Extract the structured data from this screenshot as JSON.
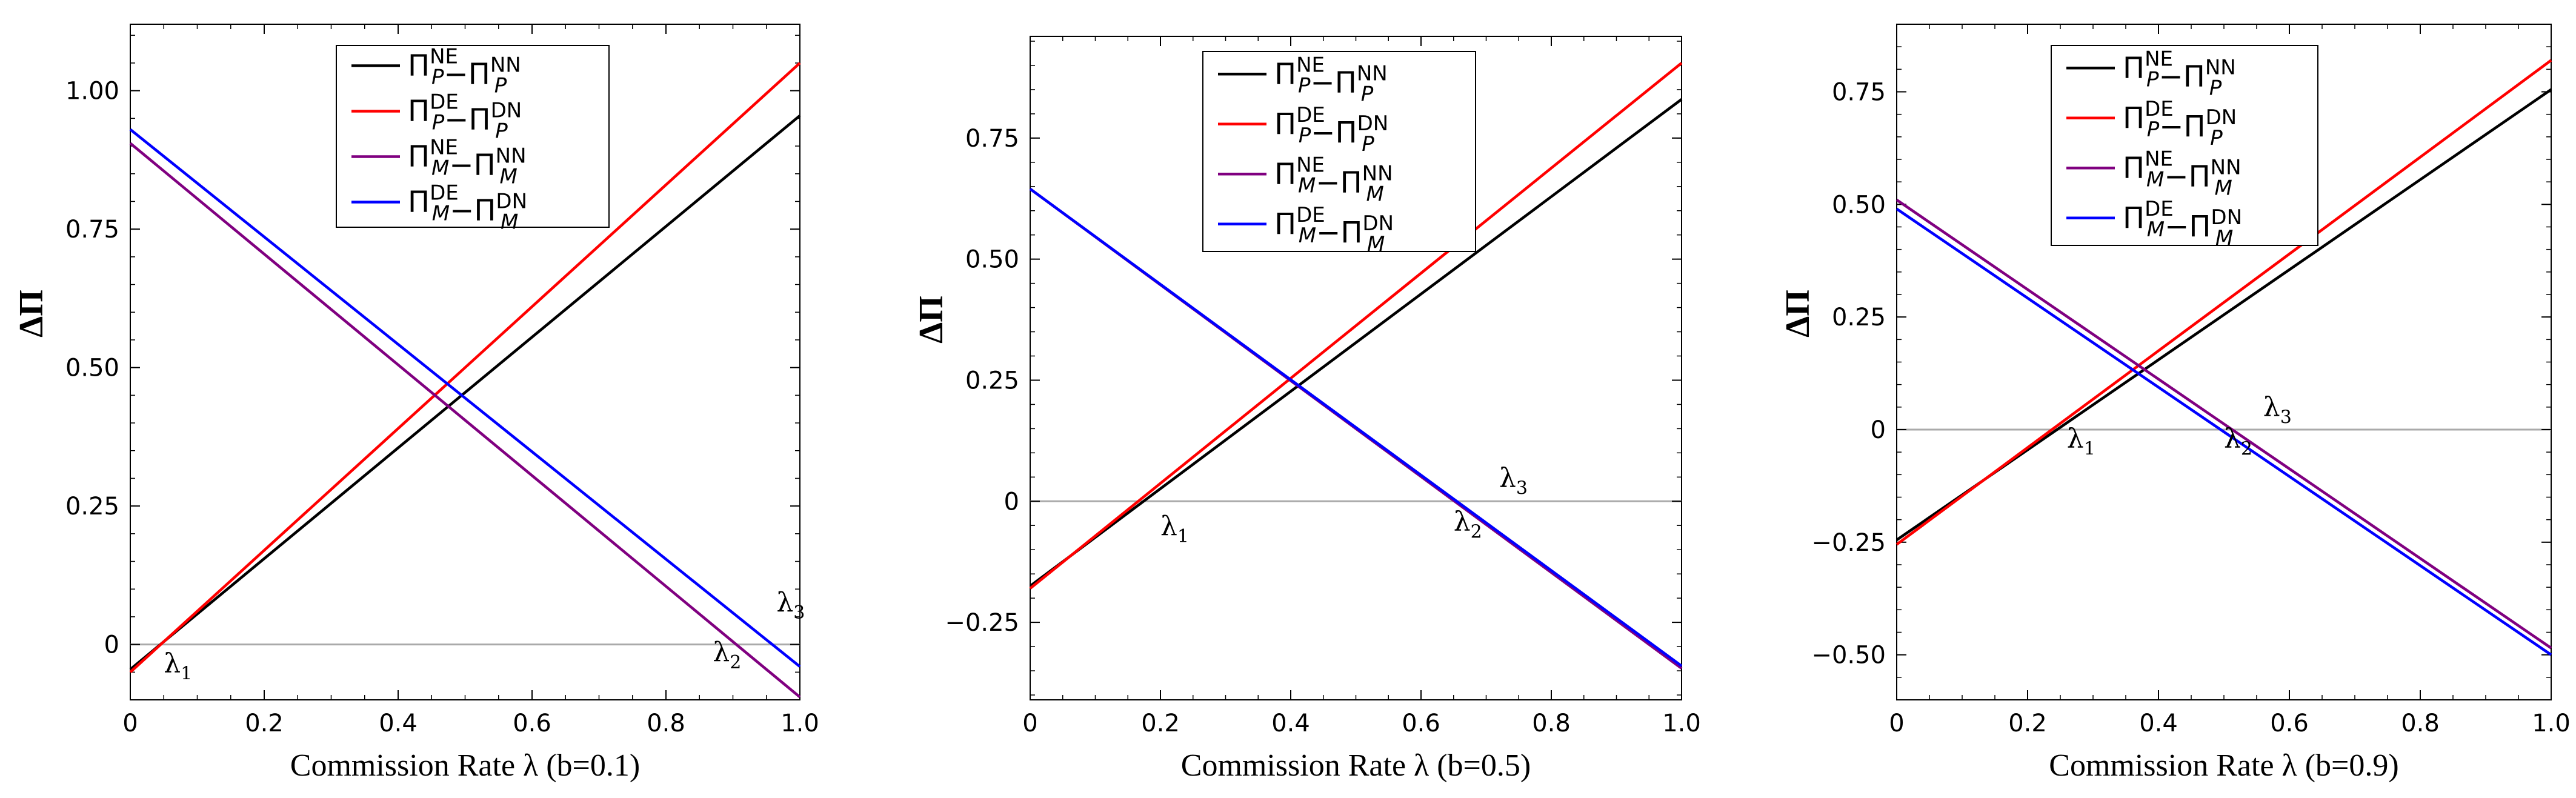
{
  "chart_data": [
    {
      "type": "line",
      "title": "",
      "xlabel": "Commission Rate λ (b=0.1)",
      "ylabel": "ΔΠ",
      "xlim": [
        0,
        1
      ],
      "ylim": [
        -0.1,
        1.12
      ],
      "x_ticks": [
        "0",
        "0.2",
        "0.4",
        "0.6",
        "0.8",
        "1.0"
      ],
      "y_ticks": [
        "0",
        "0.25",
        "0.50",
        "0.75",
        "1.00"
      ],
      "y_tick_values": [
        0,
        0.25,
        0.5,
        0.75,
        1.0
      ],
      "legend_position": "top-center",
      "series": [
        {
          "name": "ΠP^NE−ΠP^NN",
          "color": "#000000",
          "x": [
            0,
            1
          ],
          "y": [
            -0.045,
            0.955
          ]
        },
        {
          "name": "ΠP^DE−ΠP^DN",
          "color": "#ff0000",
          "x": [
            0,
            1
          ],
          "y": [
            -0.05,
            1.05
          ]
        },
        {
          "name": "ΠM^NE−ΠM^NN",
          "color": "#800080",
          "x": [
            0,
            1
          ],
          "y": [
            0.905,
            -0.095
          ]
        },
        {
          "name": "ΠM^DE−ΠM^DN",
          "color": "#0000ff",
          "x": [
            0,
            1
          ],
          "y": [
            0.93,
            -0.04
          ]
        }
      ],
      "annotations": [
        {
          "text": "λ",
          "sub": "1",
          "x": 0.05,
          "y": -0.05
        },
        {
          "text": "λ",
          "sub": "2",
          "x": 0.87,
          "y": -0.03
        },
        {
          "text": "λ",
          "sub": "3",
          "x": 0.965,
          "y": 0.06
        }
      ]
    },
    {
      "type": "line",
      "title": "",
      "xlabel": "Commission Rate λ (b=0.5)",
      "ylabel": "ΔΠ",
      "xlim": [
        0,
        1
      ],
      "ylim": [
        -0.41,
        0.96
      ],
      "x_ticks": [
        "0",
        "0.2",
        "0.4",
        "0.6",
        "0.8",
        "1.0"
      ],
      "y_ticks": [
        "−0.25",
        "0",
        "0.25",
        "0.50",
        "0.75"
      ],
      "y_tick_values": [
        -0.25,
        0,
        0.25,
        0.5,
        0.75
      ],
      "legend_position": "top-center",
      "series": [
        {
          "name": "ΠP^NE−ΠP^NN",
          "color": "#000000",
          "x": [
            0,
            1
          ],
          "y": [
            -0.175,
            0.83
          ]
        },
        {
          "name": "ΠP^DE−ΠP^DN",
          "color": "#ff0000",
          "x": [
            0,
            1
          ],
          "y": [
            -0.18,
            0.905
          ]
        },
        {
          "name": "ΠM^NE−ΠM^NN",
          "color": "#800080",
          "x": [
            0,
            1
          ],
          "y": [
            0.645,
            -0.345
          ]
        },
        {
          "name": "ΠM^DE−ΠM^DN",
          "color": "#0000ff",
          "x": [
            0,
            1
          ],
          "y": [
            0.645,
            -0.34
          ]
        }
      ],
      "annotations": [
        {
          "text": "λ",
          "sub": "1",
          "x": 0.2,
          "y": -0.07
        },
        {
          "text": "λ",
          "sub": "2",
          "x": 0.65,
          "y": -0.06
        },
        {
          "text": "λ",
          "sub": "3",
          "x": 0.72,
          "y": 0.03
        }
      ]
    },
    {
      "type": "line",
      "title": "",
      "xlabel": "Commission Rate λ (b=0.9)",
      "ylabel": "ΔΠ",
      "xlim": [
        0,
        1
      ],
      "ylim": [
        -0.6,
        0.9
      ],
      "x_ticks": [
        "0",
        "0.2",
        "0.4",
        "0.6",
        "0.8",
        "1.0"
      ],
      "y_ticks": [
        "−0.50",
        "−0.25",
        "0",
        "0.25",
        "0.50",
        "0.75"
      ],
      "y_tick_values": [
        -0.5,
        -0.25,
        0,
        0.25,
        0.5,
        0.75
      ],
      "legend_position": "top-center",
      "series": [
        {
          "name": "ΠP^NE−ΠP^NN",
          "color": "#000000",
          "x": [
            0,
            1
          ],
          "y": [
            -0.245,
            0.755
          ]
        },
        {
          "name": "ΠP^DE−ΠP^DN",
          "color": "#ff0000",
          "x": [
            0,
            1
          ],
          "y": [
            -0.255,
            0.82
          ]
        },
        {
          "name": "ΠM^NE−ΠM^NN",
          "color": "#800080",
          "x": [
            0,
            1
          ],
          "y": [
            0.51,
            -0.485
          ]
        },
        {
          "name": "ΠM^DE−ΠM^DN",
          "color": "#0000ff",
          "x": [
            0,
            1
          ],
          "y": [
            0.49,
            -0.5
          ]
        }
      ],
      "annotations": [
        {
          "text": "λ",
          "sub": "1",
          "x": 0.26,
          "y": -0.04
        },
        {
          "text": "λ",
          "sub": "2",
          "x": 0.5,
          "y": -0.04
        },
        {
          "text": "λ",
          "sub": "3",
          "x": 0.56,
          "y": 0.03
        }
      ]
    }
  ]
}
